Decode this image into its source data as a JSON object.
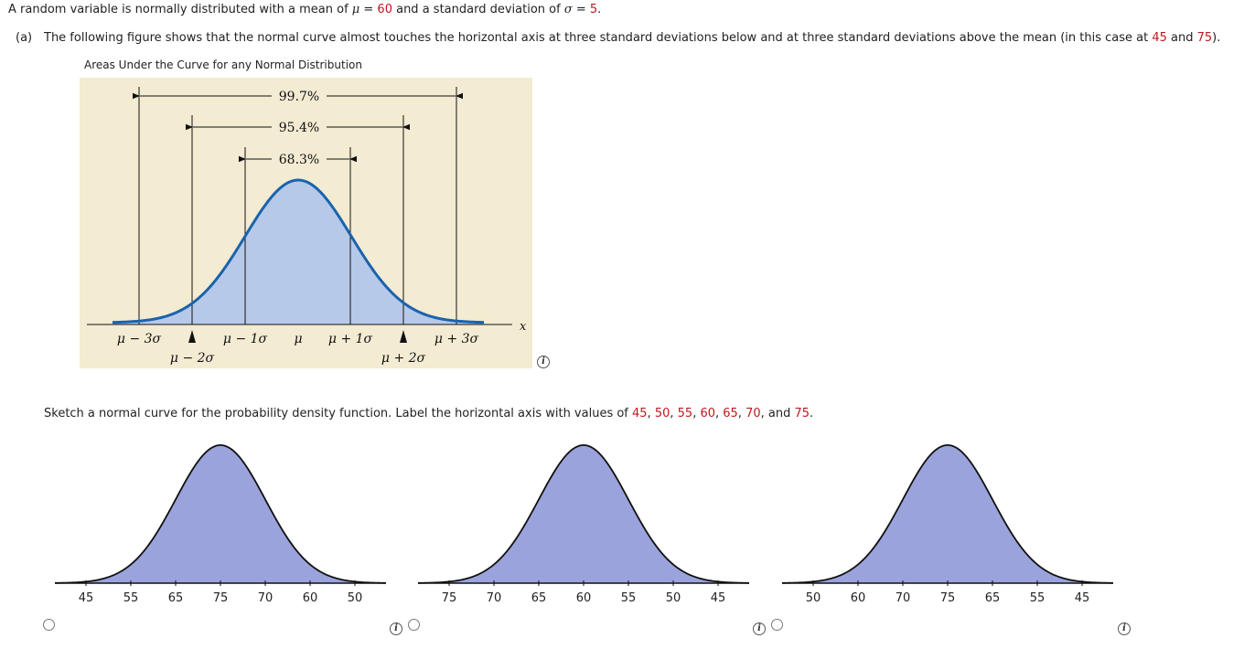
{
  "question": {
    "intro_pre": "A random variable is normally distributed with a mean of ",
    "mu_symbol": "μ",
    "eq": " = ",
    "mean": "60",
    "intro_mid": " and a standard deviation of ",
    "sigma_symbol": "σ",
    "sd": "5",
    "period": "."
  },
  "part_a": {
    "label": "(a)",
    "text_pre": "The following figure shows that the normal curve almost touches the horizontal axis at three standard deviations below and at three standard deviations above the mean (in this case at ",
    "low": "45",
    "and": " and ",
    "high": "75",
    "text_post": ")."
  },
  "figure": {
    "title": "Areas Under the Curve for any Normal Distribution",
    "pct_997": "99.7%",
    "pct_954": "95.4%",
    "pct_683": "68.3%",
    "x_axis_label": "x",
    "labels": {
      "m3": "μ − 3σ",
      "m2": "μ − 2σ",
      "m1": "μ − 1σ",
      "mu": "μ",
      "p1": "μ + 1σ",
      "p2": "μ + 2σ",
      "p3": "μ + 3σ"
    },
    "bg_color": "#f3ebd2",
    "fill_color": "#b7c9e8",
    "curve_color": "#1a63ad"
  },
  "sketch": {
    "text_pre": "Sketch a normal curve for the probability density function. Label the horizontal axis with values of ",
    "v1": "45",
    "v2": "50",
    "v3": "55",
    "v4": "60",
    "v5": "65",
    "v6": "70",
    "v7": "75",
    "sep": ", ",
    "and_text": ", and ",
    "period": "."
  },
  "options": [
    {
      "ticks": [
        "45",
        "55",
        "65",
        "75",
        "70",
        "60",
        "50"
      ]
    },
    {
      "ticks": [
        "75",
        "70",
        "65",
        "60",
        "55",
        "50",
        "45"
      ]
    },
    {
      "ticks": [
        "50",
        "60",
        "70",
        "75",
        "65",
        "55",
        "45"
      ]
    }
  ],
  "colors": {
    "accent_red": "#c0181f",
    "option_fill": "#9aa3db"
  }
}
